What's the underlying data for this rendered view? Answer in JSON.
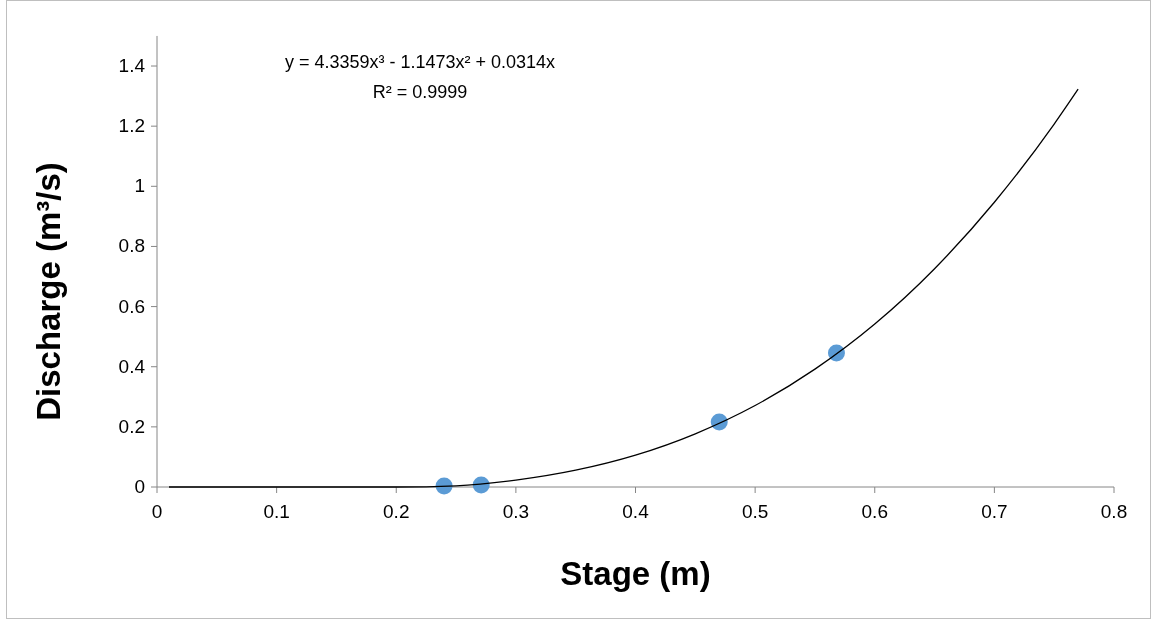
{
  "chart_data": {
    "type": "scatter",
    "xlabel": "Stage (m)",
    "ylabel": "Discharge (m³/s)",
    "annotations": [
      "y = 4.3359x³ - 1.1473x² + 0.0314x",
      "R² = 0.9999"
    ],
    "xlim": [
      0,
      0.8
    ],
    "xticks": [
      0,
      0.1,
      0.2,
      0.3,
      0.4,
      0.5,
      0.6,
      0.7,
      0.8
    ],
    "ylim": [
      0,
      1.5
    ],
    "yticks": [
      0,
      0.2,
      0.4,
      0.6,
      0.8,
      1,
      1.2,
      1.4
    ],
    "grid": false,
    "series": [
      {
        "color": "#5b9bd5",
        "marker": "circle",
        "x": [
          0.24,
          0.271,
          0.47,
          0.568
        ],
        "values": [
          0.003,
          0.007,
          0.216,
          0.446
        ]
      },
      {
        "type": "line",
        "color": "#000000",
        "marker": "none",
        "line_style": "solid",
        "x": [
          0.01,
          0.05,
          0.1,
          0.15,
          0.2,
          0.25,
          0.3,
          0.35,
          0.4,
          0.45,
          0.5,
          0.55,
          0.6,
          0.65,
          0.7,
          0.75,
          0.77
        ],
        "values": [
          0,
          0,
          0,
          0,
          0,
          0.004,
          0.023,
          0.056,
          0.106,
          0.177,
          0.271,
          0.392,
          0.542,
          0.726,
          0.947,
          1.207,
          1.323
        ]
      }
    ]
  }
}
